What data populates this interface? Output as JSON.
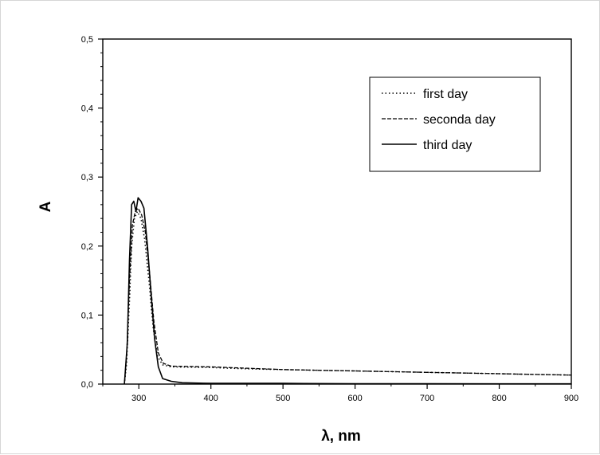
{
  "chart_data": {
    "type": "line",
    "title": "",
    "xlabel": "λ, nm",
    "ylabel": "A",
    "xlim": [
      250,
      900
    ],
    "ylim": [
      0.0,
      0.5
    ],
    "x_ticks": [
      300,
      400,
      500,
      600,
      700,
      800,
      900
    ],
    "x_tick_labels": [
      "300",
      "400",
      "500",
      "600",
      "700",
      "800",
      "900"
    ],
    "y_ticks": [
      0.0,
      0.1,
      0.2,
      0.3,
      0.4,
      0.5
    ],
    "y_tick_labels": [
      "0,0",
      "0,1",
      "0,2",
      "0,3",
      "0,4",
      "0,5"
    ],
    "grid": false,
    "legend_position": "top-right",
    "series": [
      {
        "name": "first day",
        "line_style": "dotted",
        "points": [
          [
            280,
            0.0
          ],
          [
            283,
            0.03
          ],
          [
            287,
            0.12
          ],
          [
            290,
            0.2
          ],
          [
            294,
            0.24
          ],
          [
            298,
            0.25
          ],
          [
            303,
            0.24
          ],
          [
            308,
            0.21
          ],
          [
            314,
            0.15
          ],
          [
            320,
            0.08
          ],
          [
            326,
            0.04
          ],
          [
            333,
            0.028
          ],
          [
            345,
            0.025
          ],
          [
            400,
            0.024
          ],
          [
            450,
            0.022
          ],
          [
            500,
            0.021
          ],
          [
            550,
            0.02
          ],
          [
            600,
            0.019
          ],
          [
            650,
            0.018
          ],
          [
            700,
            0.017
          ],
          [
            750,
            0.016
          ],
          [
            800,
            0.015
          ],
          [
            850,
            0.014
          ],
          [
            900,
            0.013
          ]
        ]
      },
      {
        "name": "seconda day",
        "line_style": "dashed",
        "points": [
          [
            280,
            0.0
          ],
          [
            283,
            0.04
          ],
          [
            287,
            0.15
          ],
          [
            291,
            0.23
          ],
          [
            295,
            0.25
          ],
          [
            299,
            0.255
          ],
          [
            304,
            0.245
          ],
          [
            309,
            0.22
          ],
          [
            315,
            0.16
          ],
          [
            321,
            0.09
          ],
          [
            327,
            0.045
          ],
          [
            334,
            0.03
          ],
          [
            345,
            0.026
          ],
          [
            400,
            0.025
          ],
          [
            450,
            0.023
          ],
          [
            500,
            0.021
          ],
          [
            550,
            0.02
          ],
          [
            600,
            0.019
          ],
          [
            650,
            0.018
          ],
          [
            700,
            0.017
          ],
          [
            750,
            0.016
          ],
          [
            800,
            0.015
          ],
          [
            850,
            0.014
          ],
          [
            900,
            0.013
          ]
        ]
      },
      {
        "name": "third day",
        "line_style": "solid",
        "points": [
          [
            280,
            0.0
          ],
          [
            284,
            0.06
          ],
          [
            287,
            0.18
          ],
          [
            290,
            0.26
          ],
          [
            293,
            0.265
          ],
          [
            296,
            0.25
          ],
          [
            299,
            0.27
          ],
          [
            303,
            0.265
          ],
          [
            307,
            0.255
          ],
          [
            312,
            0.2
          ],
          [
            317,
            0.13
          ],
          [
            322,
            0.065
          ],
          [
            327,
            0.025
          ],
          [
            333,
            0.008
          ],
          [
            345,
            0.004
          ],
          [
            360,
            0.002
          ],
          [
            400,
            0.001
          ],
          [
            500,
            0.001
          ],
          [
            600,
            0.0005
          ],
          [
            700,
            0.0005
          ],
          [
            800,
            0.0003
          ],
          [
            900,
            0.0003
          ]
        ]
      }
    ]
  }
}
